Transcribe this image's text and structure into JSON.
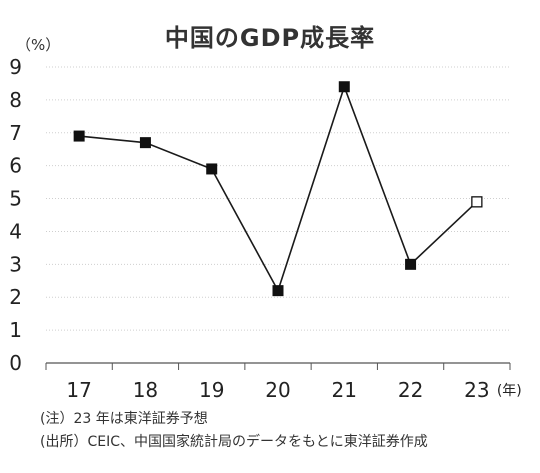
{
  "chart_data": {
    "type": "line",
    "title": "中国のGDP成長率",
    "y_unit": "（%）",
    "x_unit": "(年)",
    "categories": [
      "17",
      "18",
      "19",
      "20",
      "21",
      "22",
      "23"
    ],
    "series": [
      {
        "values": [
          6.9,
          6.7,
          5.9,
          2.2,
          8.4,
          3.0,
          4.9
        ],
        "marker": "square",
        "forecast_index": 6
      }
    ],
    "ylim": [
      0,
      9
    ],
    "yticks": [
      "0",
      "1",
      "2",
      "3",
      "4",
      "5",
      "6",
      "7",
      "8",
      "9"
    ],
    "grid": "horizontal-dotted",
    "colors": {
      "line": "#1a1a1a",
      "grid": "#cfcfcf",
      "marker_fill": "#111111",
      "forecast_fill": "#ffffff"
    }
  },
  "notes": {
    "note1": "(注）23 年は東洋証券予想",
    "note2": "(出所）CEIC、中国国家統計局のデータをもとに東洋証券作成"
  }
}
